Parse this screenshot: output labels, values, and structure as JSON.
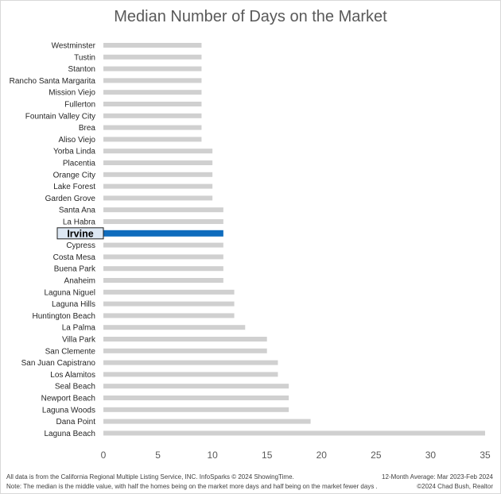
{
  "chart_data": {
    "type": "bar",
    "orientation": "horizontal",
    "title": "Median Number of Days on the Market",
    "categories": [
      "Westminster",
      "Tustin",
      "Stanton",
      "Rancho Santa Margarita",
      "Mission Viejo",
      "Fullerton",
      "Fountain Valley City",
      "Brea",
      "Aliso Viejo",
      "Yorba Linda",
      "Placentia",
      "Orange City",
      "Lake Forest",
      "Garden Grove",
      "Santa Ana",
      "La Habra",
      "Irvine",
      "Cypress",
      "Costa Mesa",
      "Buena Park",
      "Anaheim",
      "Laguna Niguel",
      "Laguna Hills",
      "Huntington Beach",
      "La Palma",
      "Villa Park",
      "San Clemente",
      "San Juan Capistrano",
      "Los Alamitos",
      "Seal Beach",
      "Newport Beach",
      "Laguna Woods",
      "Dana Point",
      "Laguna Beach"
    ],
    "values": [
      9,
      9,
      9,
      9,
      9,
      9,
      9,
      9,
      9,
      10,
      10,
      10,
      10,
      10,
      11,
      11,
      11,
      11,
      11,
      11,
      11,
      12,
      12,
      12,
      13,
      15,
      15,
      16,
      16,
      17,
      17,
      17,
      19,
      35
    ],
    "highlight": "Irvine",
    "xlim": [
      0,
      35
    ],
    "xticks": [
      0,
      5,
      10,
      15,
      20,
      25,
      30,
      35
    ],
    "grid": false,
    "colors": {
      "bar": "#d0d0d0",
      "highlight": "#0f6cbd",
      "highlight_label_bg": "#dde8f4"
    }
  },
  "footer": {
    "source": "All data is from the California Regional Multiple Listing Service, INC. InfoSparks © 2024 ShowingTime.",
    "note": "Note: The median is the middle value, with half the homes being on the market more days and half being on the market fewer days .",
    "period": "12-Month Average: Mar 2023-Feb 2024",
    "credit": "©2024 Chad Bush, Realtor"
  }
}
